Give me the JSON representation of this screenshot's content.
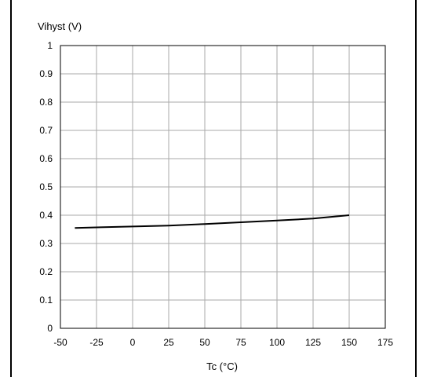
{
  "chart_data": {
    "type": "line",
    "title": "",
    "ylabel": "Vihyst (V)",
    "xlabel": "Tc (°C)",
    "xlim": [
      -50,
      175
    ],
    "ylim": [
      0,
      1
    ],
    "x_ticks": [
      "-50",
      "-25",
      "0",
      "25",
      "50",
      "75",
      "100",
      "125",
      "150",
      "175"
    ],
    "y_ticks": [
      "0",
      "0.1",
      "0.2",
      "0.3",
      "0.4",
      "0.5",
      "0.6",
      "0.7",
      "0.8",
      "0.9",
      "1"
    ],
    "grid": true,
    "series": [
      {
        "x": [
          -40,
          -25,
          0,
          25,
          50,
          75,
          100,
          125,
          150
        ],
        "y": [
          0.355,
          0.357,
          0.36,
          0.363,
          0.369,
          0.375,
          0.381,
          0.388,
          0.4
        ],
        "color": "#000000"
      }
    ]
  }
}
